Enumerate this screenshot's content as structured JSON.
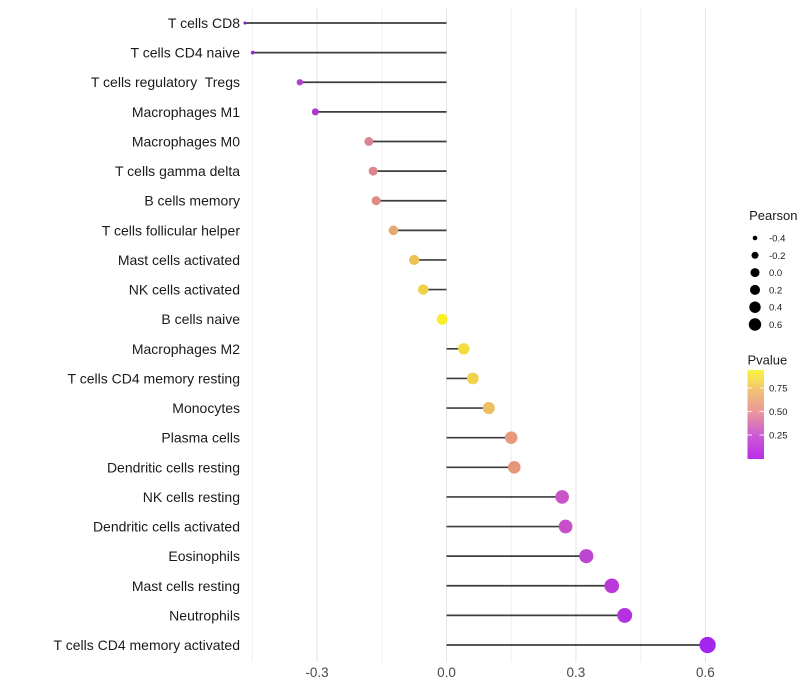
{
  "chart_data": {
    "type": "scatter",
    "variant": "lollipop",
    "title": "",
    "xlabel": "",
    "ylabel": "",
    "grid": "vertical-only",
    "background_color": "#FFFFFF",
    "stem_color": "#3D3D3D",
    "x_axis": {
      "tick_labels": [
        "-0.3",
        "0.0",
        "0.3",
        "0.6"
      ],
      "tick_values": [
        -0.3,
        0.0,
        0.3,
        0.6
      ],
      "minor_gridline_values": [
        -0.45,
        -0.15,
        0.15,
        0.45
      ],
      "range": [
        -0.48,
        0.65
      ]
    },
    "points": [
      {
        "label": "T cells CD8",
        "pearson": -0.467,
        "pvalue_est": 0.005,
        "color": "#8023C8"
      },
      {
        "label": "T cells CD4 naive",
        "pearson": -0.449,
        "pvalue_est": 0.02,
        "color": "#8F2BD1"
      },
      {
        "label": "T cells regulatory  Tregs",
        "pearson": -0.34,
        "pvalue_est": 0.13,
        "color": "#AF42CC"
      },
      {
        "label": "Macrophages M1",
        "pearson": -0.304,
        "pvalue_est": 0.11,
        "color": "#A938CC"
      },
      {
        "label": "Macrophages M0",
        "pearson": -0.18,
        "pvalue_est": 0.47,
        "color": "#D98490"
      },
      {
        "label": "T cells gamma delta",
        "pearson": -0.17,
        "pvalue_est": 0.47,
        "color": "#D9868C"
      },
      {
        "label": "B cells memory",
        "pearson": -0.163,
        "pvalue_est": 0.48,
        "color": "#DC8C85"
      },
      {
        "label": "T cells follicular helper",
        "pearson": -0.123,
        "pvalue_est": 0.62,
        "color": "#E7A76F"
      },
      {
        "label": "Mast cells activated",
        "pearson": -0.075,
        "pvalue_est": 0.78,
        "color": "#EEC254"
      },
      {
        "label": "NK cells activated",
        "pearson": -0.054,
        "pvalue_est": 0.83,
        "color": "#F0D14A"
      },
      {
        "label": "B cells naive",
        "pearson": -0.01,
        "pvalue_est": 0.95,
        "color": "#F8EF29"
      },
      {
        "label": "Macrophages M2",
        "pearson": 0.04,
        "pvalue_est": 0.88,
        "color": "#F3DC40"
      },
      {
        "label": "T cells CD4 memory resting",
        "pearson": 0.061,
        "pvalue_est": 0.84,
        "color": "#F0D24C"
      },
      {
        "label": "Monocytes",
        "pearson": 0.098,
        "pvalue_est": 0.73,
        "color": "#EEBE63"
      },
      {
        "label": "Plasma cells",
        "pearson": 0.15,
        "pvalue_est": 0.55,
        "color": "#E69A7B"
      },
      {
        "label": "Dendritic cells resting",
        "pearson": 0.157,
        "pvalue_est": 0.54,
        "color": "#E5977C"
      },
      {
        "label": "NK cells resting",
        "pearson": 0.268,
        "pvalue_est": 0.22,
        "color": "#C755C8"
      },
      {
        "label": "Dendritic cells activated",
        "pearson": 0.276,
        "pvalue_est": 0.21,
        "color": "#C750CA"
      },
      {
        "label": "Eosinophils",
        "pearson": 0.324,
        "pvalue_est": 0.17,
        "color": "#BE44D2"
      },
      {
        "label": "Mast cells resting",
        "pearson": 0.383,
        "pvalue_est": 0.12,
        "color": "#B93AD8"
      },
      {
        "label": "Neutrophils",
        "pearson": 0.413,
        "pvalue_est": 0.09,
        "color": "#B530DE"
      },
      {
        "label": "T cells CD4 memory activated",
        "pearson": 0.605,
        "pvalue_est": 0.04,
        "color": "#A426EC"
      }
    ],
    "legend_pearson": {
      "title": "Pearson",
      "entry_labels": [
        "-0.4",
        "-0.2",
        "0.0",
        "0.2",
        "0.4",
        "0.6"
      ],
      "entry_values": [
        -0.4,
        -0.2,
        0.0,
        0.2,
        0.4,
        0.6
      ],
      "dot_color": "#000000"
    },
    "legend_pvalue": {
      "title": "Pvalue",
      "tick_labels": [
        "0.75",
        "0.50",
        "0.25"
      ],
      "gradient_stops": [
        {
          "offset": 0.0,
          "color": "#F9F23F"
        },
        {
          "offset": 0.1,
          "color": "#F6E054"
        },
        {
          "offset": 0.21,
          "color": "#F3C46E"
        },
        {
          "offset": 0.47,
          "color": "#E9989B"
        },
        {
          "offset": 0.73,
          "color": "#CB5DD1"
        },
        {
          "offset": 1.0,
          "color": "#BC2BEB"
        }
      ]
    }
  }
}
